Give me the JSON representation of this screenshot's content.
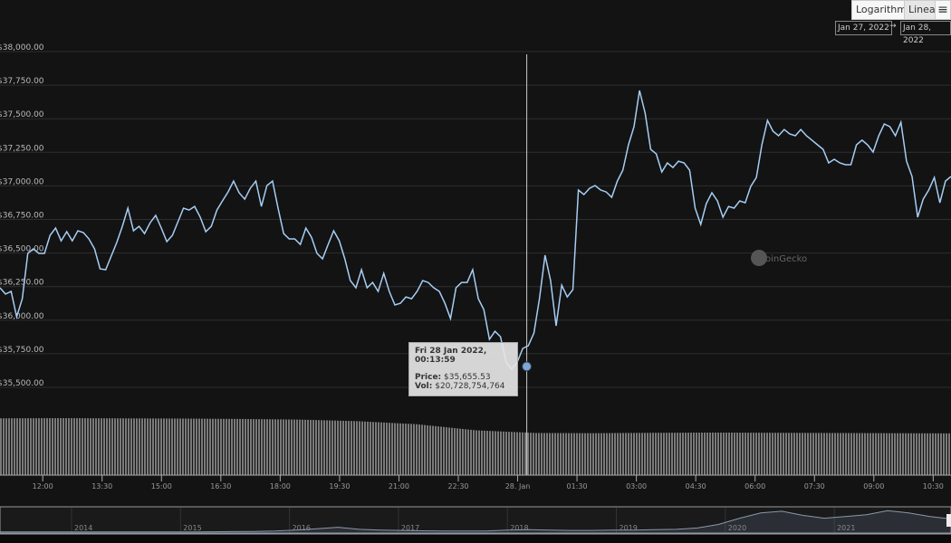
{
  "toolbar": {
    "log_label": "Logarithmic",
    "linear_label": "Linear",
    "menu_icon": "hamburger-menu-icon"
  },
  "range": {
    "from": "Jan 27, 2022",
    "arrow": "→",
    "to": "Jan 28, 2022"
  },
  "watermark": "CoinGecko",
  "tooltip": {
    "date": "Fri 28 Jan 2022, 00:13:59",
    "price_label": "Price:",
    "price": "$35,655.53",
    "vol_label": "Vol:",
    "vol": "$20,728,754,764"
  },
  "chart_data": {
    "type": "line",
    "title": "",
    "ylim": [
      35500,
      38000
    ],
    "y_ticks": [
      "$35,500.00",
      "$35,750.00",
      "$36,000.00",
      "$36,250.00",
      "$36,500.00",
      "$36,750.00",
      "$37,000.00",
      "$37,250.00",
      "$37,500.00",
      "$37,750.00",
      "$38,000.00"
    ],
    "y_tick_values": [
      35500,
      35750,
      36000,
      36250,
      36500,
      36750,
      37000,
      37250,
      37500,
      37750,
      38000
    ],
    "x_ticks": [
      "12:00",
      "13:30",
      "15:00",
      "16:30",
      "18:00",
      "19:30",
      "21:00",
      "22:30",
      "28. Jan",
      "01:30",
      "03:00",
      "04:30",
      "06:00",
      "07:30",
      "09:00",
      "10:30"
    ],
    "x_tick_hours": [
      0,
      1.5,
      3,
      4.5,
      6,
      7.5,
      9,
      10.5,
      12,
      13.5,
      15,
      16.5,
      18,
      19.5,
      21,
      22.5
    ],
    "x_range_hours": [
      -1.08,
      22.95
    ],
    "series": [
      {
        "name": "Price (USD)",
        "color": "#a6cdf4",
        "values": [
          36241,
          36195,
          36214,
          36025,
          36160,
          36497,
          36531,
          36497,
          36497,
          36632,
          36686,
          36591,
          36659,
          36591,
          36666,
          36652,
          36605,
          36531,
          36382,
          36376,
          36477,
          36578,
          36699,
          36834,
          36666,
          36699,
          36645,
          36726,
          36780,
          36686,
          36585,
          36632,
          36733,
          36834,
          36820,
          36847,
          36767,
          36659,
          36699,
          36820,
          36888,
          36955,
          37036,
          36949,
          36901,
          36982,
          37036,
          36847,
          37003,
          37036,
          36834,
          36645,
          36605,
          36605,
          36564,
          36686,
          36618,
          36497,
          36457,
          36564,
          36666,
          36591,
          36457,
          36295,
          36241,
          36376,
          36241,
          36281,
          36214,
          36349,
          36214,
          36113,
          36126,
          36173,
          36160,
          36214,
          36295,
          36281,
          36241,
          36214,
          36126,
          36012,
          36241,
          36281,
          36281,
          36376,
          36160,
          36079,
          35857,
          35917,
          35877,
          35688,
          35634,
          35688,
          35790,
          35810,
          35904,
          36160,
          36484,
          36295,
          35958,
          36261,
          36173,
          36227,
          36969,
          36935,
          36982,
          37003,
          36969,
          36955,
          36915,
          37036,
          37117,
          37306,
          37441,
          37710,
          37542,
          37272,
          37238,
          37104,
          37171,
          37137,
          37184,
          37171,
          37117,
          36834,
          36713,
          36868,
          36949,
          36888,
          36767,
          36847,
          36834,
          36888,
          36874,
          36996,
          37063,
          37306,
          37488,
          37407,
          37373,
          37420,
          37387,
          37373,
          37420,
          37373,
          37340,
          37306,
          37272,
          37171,
          37198,
          37171,
          37158,
          37158,
          37306,
          37340,
          37306,
          37252,
          37373,
          37461,
          37441,
          37373,
          37474,
          37184,
          37070,
          36767,
          36901,
          36969,
          37063,
          36874,
          37036,
          37070
        ]
      },
      {
        "name": "Volume (USD bn)",
        "color": "#8a8a8a",
        "values": [
          27.9,
          28.0,
          27.9,
          27.8,
          27.6,
          27.3,
          26.5,
          25.0,
          22.0,
          20.7,
          20.6,
          20.8,
          20.9,
          20.8,
          20.7,
          20.6,
          20.5
        ]
      }
    ],
    "highlight": {
      "series": "Price (USD)",
      "hours": 12.23,
      "price": 35655.53
    },
    "navigator": {
      "years": [
        "2014",
        "2015",
        "2016",
        "2017",
        "2018",
        "2019",
        "2020",
        "2021"
      ],
      "values": [
        0.5,
        0.5,
        0.5,
        0.5,
        0.6,
        0.5,
        0.5,
        0.5,
        0.6,
        0.8,
        1,
        1.5,
        2,
        3,
        6,
        10,
        14,
        8,
        6,
        5,
        4,
        3.5,
        3,
        3.5,
        6,
        7,
        6,
        5,
        5,
        6,
        6,
        7,
        8,
        12,
        22,
        40,
        55,
        60,
        48,
        40,
        45,
        50,
        62,
        55,
        45,
        38
      ]
    }
  }
}
